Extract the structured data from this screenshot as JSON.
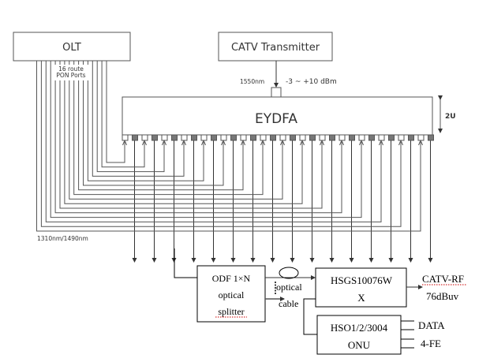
{
  "olt": {
    "label": "OLT"
  },
  "pon_label": {
    "line1": "16 route",
    "line2": "PON Ports"
  },
  "catv_tx": {
    "label": "CATV Transmitter"
  },
  "wavelength_in": "1550nm",
  "power_in": "-3 ~ +10 dBm",
  "eydfa": {
    "label": "EYDFA",
    "height_label": "2U",
    "port_count": 32
  },
  "return_wavelength": "1310nm/1490nm",
  "odf": {
    "line1": "ODF 1×N",
    "line2": "optical",
    "line3": "splitter"
  },
  "cable": {
    "line1": "optical",
    "line2": "cable"
  },
  "hsgs": {
    "line1": "HSGS10076W",
    "line2": "X"
  },
  "catv_out": {
    "line1": "CATV-RF",
    "line2": "76dBuv"
  },
  "onu": {
    "line1": "HSO1/2/3004",
    "line2": "ONU"
  },
  "onu_out": {
    "data": "DATA",
    "fe": "4-FE"
  },
  "colors": {
    "line": "#555555",
    "box": "#444444",
    "port_out": "#777777",
    "spell": "#cc0000"
  }
}
